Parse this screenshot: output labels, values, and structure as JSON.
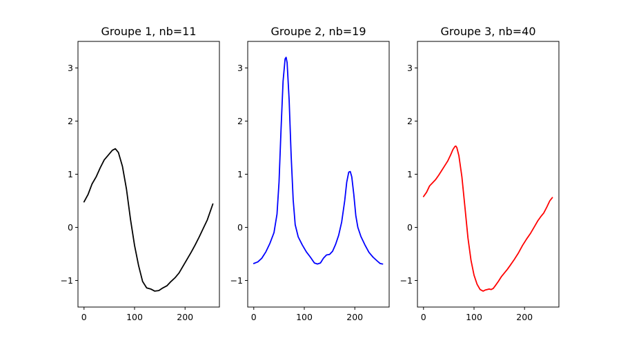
{
  "chart_data": [
    {
      "type": "line",
      "title": "Groupe 1, nb=11",
      "xlim": [
        -12,
        268
      ],
      "ylim": [
        -1.5,
        3.5
      ],
      "xticks": [
        0,
        100,
        200
      ],
      "yticks": [
        -1,
        0,
        1,
        2,
        3
      ],
      "color": "#000000",
      "series": [
        {
          "x": [
            0,
            8,
            16,
            24,
            32,
            40,
            48,
            56,
            62,
            68,
            76,
            84,
            92,
            100,
            108,
            116,
            124,
            132,
            140,
            148,
            156,
            164,
            172,
            180,
            188,
            196,
            204,
            212,
            220,
            228,
            236,
            244,
            255
          ],
          "y": [
            0.48,
            0.62,
            0.82,
            0.95,
            1.12,
            1.27,
            1.36,
            1.45,
            1.48,
            1.41,
            1.15,
            0.72,
            0.15,
            -0.34,
            -0.72,
            -1.02,
            -1.14,
            -1.16,
            -1.2,
            -1.19,
            -1.14,
            -1.1,
            -1.02,
            -0.95,
            -0.86,
            -0.73,
            -0.6,
            -0.47,
            -0.33,
            -0.18,
            -0.02,
            0.14,
            0.44
          ]
        }
      ]
    },
    {
      "type": "line",
      "title": "Groupe 2, nb=19",
      "xlim": [
        -12,
        268
      ],
      "ylim": [
        -1.5,
        3.5
      ],
      "xticks": [
        0,
        100,
        200
      ],
      "yticks": [
        -1,
        0,
        1,
        2,
        3
      ],
      "color": "#0000ff",
      "series": [
        {
          "x": [
            0,
            8,
            16,
            24,
            32,
            40,
            46,
            50,
            54,
            58,
            62,
            64,
            66,
            70,
            74,
            78,
            82,
            88,
            96,
            104,
            112,
            120,
            126,
            132,
            138,
            144,
            150,
            156,
            162,
            168,
            174,
            180,
            184,
            188,
            191,
            194,
            198,
            202,
            206,
            212,
            220,
            228,
            236,
            244,
            250,
            255
          ],
          "y": [
            -0.68,
            -0.65,
            -0.58,
            -0.46,
            -0.3,
            -0.1,
            0.25,
            0.85,
            1.85,
            2.75,
            3.17,
            3.2,
            3.1,
            2.4,
            1.35,
            0.52,
            0.05,
            -0.18,
            -0.33,
            -0.46,
            -0.56,
            -0.67,
            -0.69,
            -0.67,
            -0.58,
            -0.52,
            -0.51,
            -0.45,
            -0.32,
            -0.15,
            0.1,
            0.5,
            0.85,
            1.04,
            1.05,
            0.95,
            0.62,
            0.22,
            0.0,
            -0.17,
            -0.33,
            -0.47,
            -0.56,
            -0.63,
            -0.68,
            -0.69
          ]
        }
      ]
    },
    {
      "type": "line",
      "title": "Groupe 3, nb=40",
      "xlim": [
        -12,
        268
      ],
      "ylim": [
        -1.5,
        3.5
      ],
      "xticks": [
        0,
        100,
        200
      ],
      "yticks": [
        -1,
        0,
        1,
        2,
        3
      ],
      "color": "#ff0000",
      "series": [
        {
          "x": [
            0,
            6,
            12,
            18,
            24,
            30,
            36,
            42,
            48,
            54,
            58,
            62,
            64,
            66,
            70,
            76,
            82,
            88,
            94,
            100,
            106,
            112,
            118,
            122,
            126,
            130,
            134,
            138,
            142,
            148,
            154,
            160,
            166,
            172,
            180,
            188,
            196,
            204,
            212,
            220,
            226,
            232,
            238,
            244,
            250,
            255
          ],
          "y": [
            0.58,
            0.66,
            0.78,
            0.84,
            0.9,
            0.98,
            1.07,
            1.16,
            1.25,
            1.37,
            1.46,
            1.52,
            1.53,
            1.5,
            1.35,
            0.95,
            0.38,
            -0.2,
            -0.62,
            -0.9,
            -1.07,
            -1.17,
            -1.2,
            -1.18,
            -1.17,
            -1.16,
            -1.17,
            -1.15,
            -1.1,
            -1.02,
            -0.93,
            -0.86,
            -0.79,
            -0.71,
            -0.6,
            -0.48,
            -0.34,
            -0.22,
            -0.11,
            0.02,
            0.12,
            0.2,
            0.27,
            0.38,
            0.5,
            0.56
          ]
        }
      ]
    }
  ]
}
